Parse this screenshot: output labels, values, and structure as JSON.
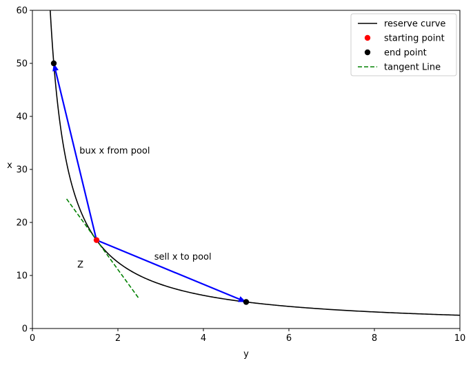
{
  "chart_data": {
    "type": "line",
    "title": "",
    "xlabel": "y",
    "ylabel": "x",
    "xlim": [
      0,
      10
    ],
    "ylim": [
      0,
      60
    ],
    "x_ticks": [
      0,
      2,
      4,
      6,
      8,
      10
    ],
    "y_ticks": [
      0,
      10,
      20,
      30,
      40,
      50,
      60
    ],
    "grid": false,
    "legend_position": "top-right",
    "series": [
      {
        "name": "reserve curve",
        "kind": "line",
        "color": "#000000",
        "equation": "x = 25 / y",
        "k": 25
      },
      {
        "name": "starting point",
        "kind": "scatter",
        "color": "#ff0000",
        "points": [
          [
            1.5,
            16.67
          ]
        ]
      },
      {
        "name": "end point",
        "kind": "scatter",
        "color": "#000000",
        "points": [
          [
            0.5,
            50
          ],
          [
            5,
            5
          ]
        ]
      },
      {
        "name": "tangent Line",
        "kind": "line",
        "style": "dashed",
        "color": "#008000",
        "points": [
          [
            0.8,
            24.44
          ],
          [
            2.5,
            5.56
          ]
        ]
      }
    ],
    "arrows": [
      {
        "from": [
          1.5,
          16.67
        ],
        "to": [
          0.5,
          50
        ],
        "color": "#0000ff"
      },
      {
        "from": [
          1.5,
          16.67
        ],
        "to": [
          5,
          5
        ],
        "color": "#0000ff"
      }
    ],
    "annotations": [
      {
        "text": "bux x from pool",
        "x": 1.1,
        "y": 33
      },
      {
        "text": "sell x to pool",
        "x": 2.85,
        "y": 13
      },
      {
        "text": "Z",
        "x": 1.05,
        "y": 11.5
      }
    ]
  }
}
